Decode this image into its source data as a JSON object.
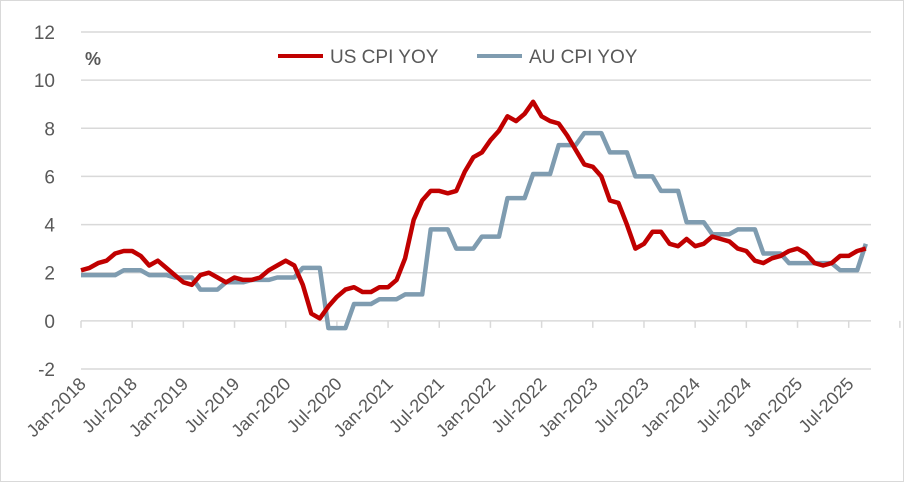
{
  "chart_data": {
    "type": "line",
    "title": "",
    "ylabel": "%",
    "xlabel": "",
    "ylim": [
      -2,
      12
    ],
    "yticks": [
      -2,
      0,
      2,
      4,
      6,
      8,
      10,
      12
    ],
    "grid": true,
    "legend_position": "top",
    "x_start": "Jan-2018",
    "x_tick_labels": [
      "Jan-2018",
      "Jul-2018",
      "Jan-2019",
      "Jul-2019",
      "Jan-2020",
      "Jul-2020",
      "Jan-2021",
      "Jul-2021",
      "Jan-2022",
      "Jul-2022",
      "Jan-2023",
      "Jul-2023",
      "Jan-2024",
      "Jul-2024",
      "Jan-2025",
      "Jul-2025"
    ],
    "series": [
      {
        "name": "US CPI YOY",
        "color": "#c00000",
        "values": [
          2.1,
          2.2,
          2.4,
          2.5,
          2.8,
          2.9,
          2.9,
          2.7,
          2.3,
          2.5,
          2.2,
          1.9,
          1.6,
          1.5,
          1.9,
          2.0,
          1.8,
          1.6,
          1.8,
          1.7,
          1.7,
          1.8,
          2.1,
          2.3,
          2.5,
          2.3,
          1.5,
          0.3,
          0.1,
          0.6,
          1.0,
          1.3,
          1.4,
          1.2,
          1.2,
          1.4,
          1.4,
          1.7,
          2.6,
          4.2,
          5.0,
          5.4,
          5.4,
          5.3,
          5.4,
          6.2,
          6.8,
          7.0,
          7.5,
          7.9,
          8.5,
          8.3,
          8.6,
          9.1,
          8.5,
          8.3,
          8.2,
          7.7,
          7.1,
          6.5,
          6.4,
          6.0,
          5.0,
          4.9,
          4.0,
          3.0,
          3.2,
          3.7,
          3.7,
          3.2,
          3.1,
          3.4,
          3.1,
          3.2,
          3.5,
          3.4,
          3.3,
          3.0,
          2.9,
          2.5,
          2.4,
          2.6,
          2.7,
          2.9,
          3.0,
          2.8,
          2.4,
          2.3,
          2.4,
          2.7,
          2.7,
          2.9,
          3.0
        ]
      },
      {
        "name": "AU CPI YOY",
        "color": "#7f9cb0",
        "values": [
          1.9,
          1.9,
          1.9,
          1.9,
          1.9,
          2.1,
          2.1,
          2.1,
          1.9,
          1.9,
          1.9,
          1.8,
          1.8,
          1.8,
          1.3,
          1.3,
          1.3,
          1.6,
          1.6,
          1.6,
          1.7,
          1.7,
          1.7,
          1.8,
          1.8,
          1.8,
          2.2,
          2.2,
          2.2,
          -0.3,
          -0.3,
          -0.3,
          0.7,
          0.7,
          0.7,
          0.9,
          0.9,
          0.9,
          1.1,
          1.1,
          1.1,
          3.8,
          3.8,
          3.8,
          3.0,
          3.0,
          3.0,
          3.5,
          3.5,
          3.5,
          5.1,
          5.1,
          5.1,
          6.1,
          6.1,
          6.1,
          7.3,
          7.3,
          7.3,
          7.8,
          7.8,
          7.8,
          7.0,
          7.0,
          7.0,
          6.0,
          6.0,
          6.0,
          5.4,
          5.4,
          5.4,
          4.1,
          4.1,
          4.1,
          3.6,
          3.6,
          3.6,
          3.8,
          3.8,
          3.8,
          2.8,
          2.8,
          2.8,
          2.4,
          2.4,
          2.4,
          2.4,
          2.4,
          2.4,
          2.1,
          2.1,
          2.1,
          3.2
        ]
      }
    ]
  }
}
